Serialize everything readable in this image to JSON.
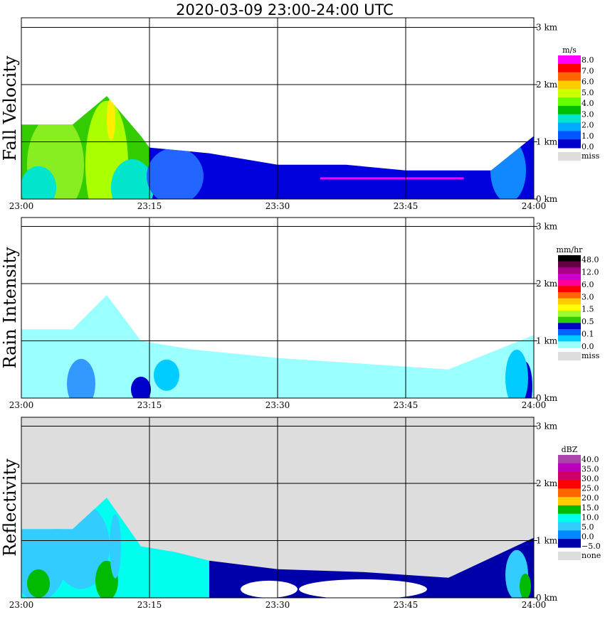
{
  "title": "2020-03-09   23:00-24:00 UTC",
  "chart_data": [
    {
      "type": "heatmap",
      "ylabel": "Fall Velocity",
      "x_ticks": [
        "23:00",
        "23:15",
        "23:30",
        "23:45",
        "24:00"
      ],
      "y_ticks": [
        "0 km",
        "1 km",
        "2 km",
        "3 km"
      ],
      "xlim": [
        "23:00",
        "24:00"
      ],
      "ylim_km": [
        0,
        3
      ],
      "grid": true,
      "background": "#ffffff",
      "legend": {
        "unit": "m/s",
        "placement": "right",
        "labels": [
          "8.0",
          "7.0",
          "6.0",
          "5.0",
          "4.0",
          "3.0",
          "2.0",
          "1.0",
          "0.0"
        ],
        "colors": [
          "#ff00ff",
          "#ff0000",
          "#ff6600",
          "#ffcc00",
          "#ccff00",
          "#66ff00",
          "#00bb00",
          "#00e5cc",
          "#00aaff",
          "#0055ff",
          "#0000cc"
        ],
        "miss_label": "miss",
        "miss_color": "#dddddd"
      },
      "cloud_top_km": [
        {
          "t": "23:00",
          "km": 1.3
        },
        {
          "t": "23:06",
          "km": 1.3
        },
        {
          "t": "23:10",
          "km": 1.8
        },
        {
          "t": "23:14",
          "km": 1.1
        },
        {
          "t": "23:15",
          "km": 0.9
        },
        {
          "t": "23:22",
          "km": 0.8
        },
        {
          "t": "23:30",
          "km": 0.6
        },
        {
          "t": "23:38",
          "km": 0.6
        },
        {
          "t": "23:45",
          "km": 0.5
        },
        {
          "t": "23:55",
          "km": 0.5
        },
        {
          "t": "24:00",
          "km": 1.1
        }
      ]
    },
    {
      "type": "heatmap",
      "ylabel": "Rain Intensity",
      "x_ticks": [
        "23:00",
        "23:15",
        "23:30",
        "23:45",
        "24:00"
      ],
      "y_ticks": [
        "0 km",
        "1 km",
        "2 km",
        "3 km"
      ],
      "xlim": [
        "23:00",
        "24:00"
      ],
      "ylim_km": [
        0,
        3
      ],
      "grid": true,
      "background": "#ffffff",
      "legend": {
        "unit": "mm/hr",
        "placement": "right",
        "labels": [
          "48.0",
          "12.0",
          "6.0",
          "3.0",
          "1.5",
          "0.5",
          "0.1",
          "0.0"
        ],
        "colors": [
          "#000000",
          "#660044",
          "#aa0088",
          "#cc00cc",
          "#ff0099",
          "#ff0000",
          "#ff6600",
          "#ffcc00",
          "#ffff00",
          "#99ff33",
          "#33cc00",
          "#0000cc",
          "#0066ff",
          "#00ccff",
          "#99ffff"
        ],
        "miss_label": "miss",
        "miss_color": "#dddddd"
      },
      "cloud_top_km": [
        {
          "t": "23:00",
          "km": 1.2
        },
        {
          "t": "23:06",
          "km": 1.2
        },
        {
          "t": "23:10",
          "km": 1.8
        },
        {
          "t": "23:14",
          "km": 1.0
        },
        {
          "t": "23:20",
          "km": 0.85
        },
        {
          "t": "23:30",
          "km": 0.7
        },
        {
          "t": "23:40",
          "km": 0.6
        },
        {
          "t": "23:50",
          "km": 0.5
        },
        {
          "t": "24:00",
          "km": 1.1
        }
      ]
    },
    {
      "type": "heatmap",
      "ylabel": "Reflectivity",
      "x_ticks": [
        "23:00",
        "23:15",
        "23:30",
        "23:45",
        "24:00"
      ],
      "y_ticks": [
        "0 km",
        "1 km",
        "2 km",
        "3 km"
      ],
      "xlim": [
        "23:00",
        "24:00"
      ],
      "ylim_km": [
        0,
        3
      ],
      "grid": true,
      "background": "#dddddd",
      "legend": {
        "unit": "dBZ",
        "placement": "right",
        "labels": [
          "40.0",
          "35.0",
          "30.0",
          "25.0",
          "20.0",
          "15.0",
          "10.0",
          "5.0",
          "0.0",
          "−5.0"
        ],
        "colors": [
          "#aa44aa",
          "#bb00bb",
          "#cc0066",
          "#ff0000",
          "#ff6600",
          "#ffcc00",
          "#00bb00",
          "#00ffee",
          "#33ccff",
          "#0088ff",
          "#0000aa"
        ],
        "miss_label": "none",
        "miss_color": "#dddddd"
      },
      "cloud_top_km": [
        {
          "t": "23:00",
          "km": 1.2
        },
        {
          "t": "23:06",
          "km": 1.2
        },
        {
          "t": "23:10",
          "km": 1.75
        },
        {
          "t": "23:14",
          "km": 0.9
        },
        {
          "t": "23:18",
          "km": 0.8
        },
        {
          "t": "23:22",
          "km": 0.65
        },
        {
          "t": "23:30",
          "km": 0.5
        },
        {
          "t": "23:40",
          "km": 0.45
        },
        {
          "t": "23:50",
          "km": 0.35
        },
        {
          "t": "24:00",
          "km": 1.05
        }
      ]
    }
  ]
}
